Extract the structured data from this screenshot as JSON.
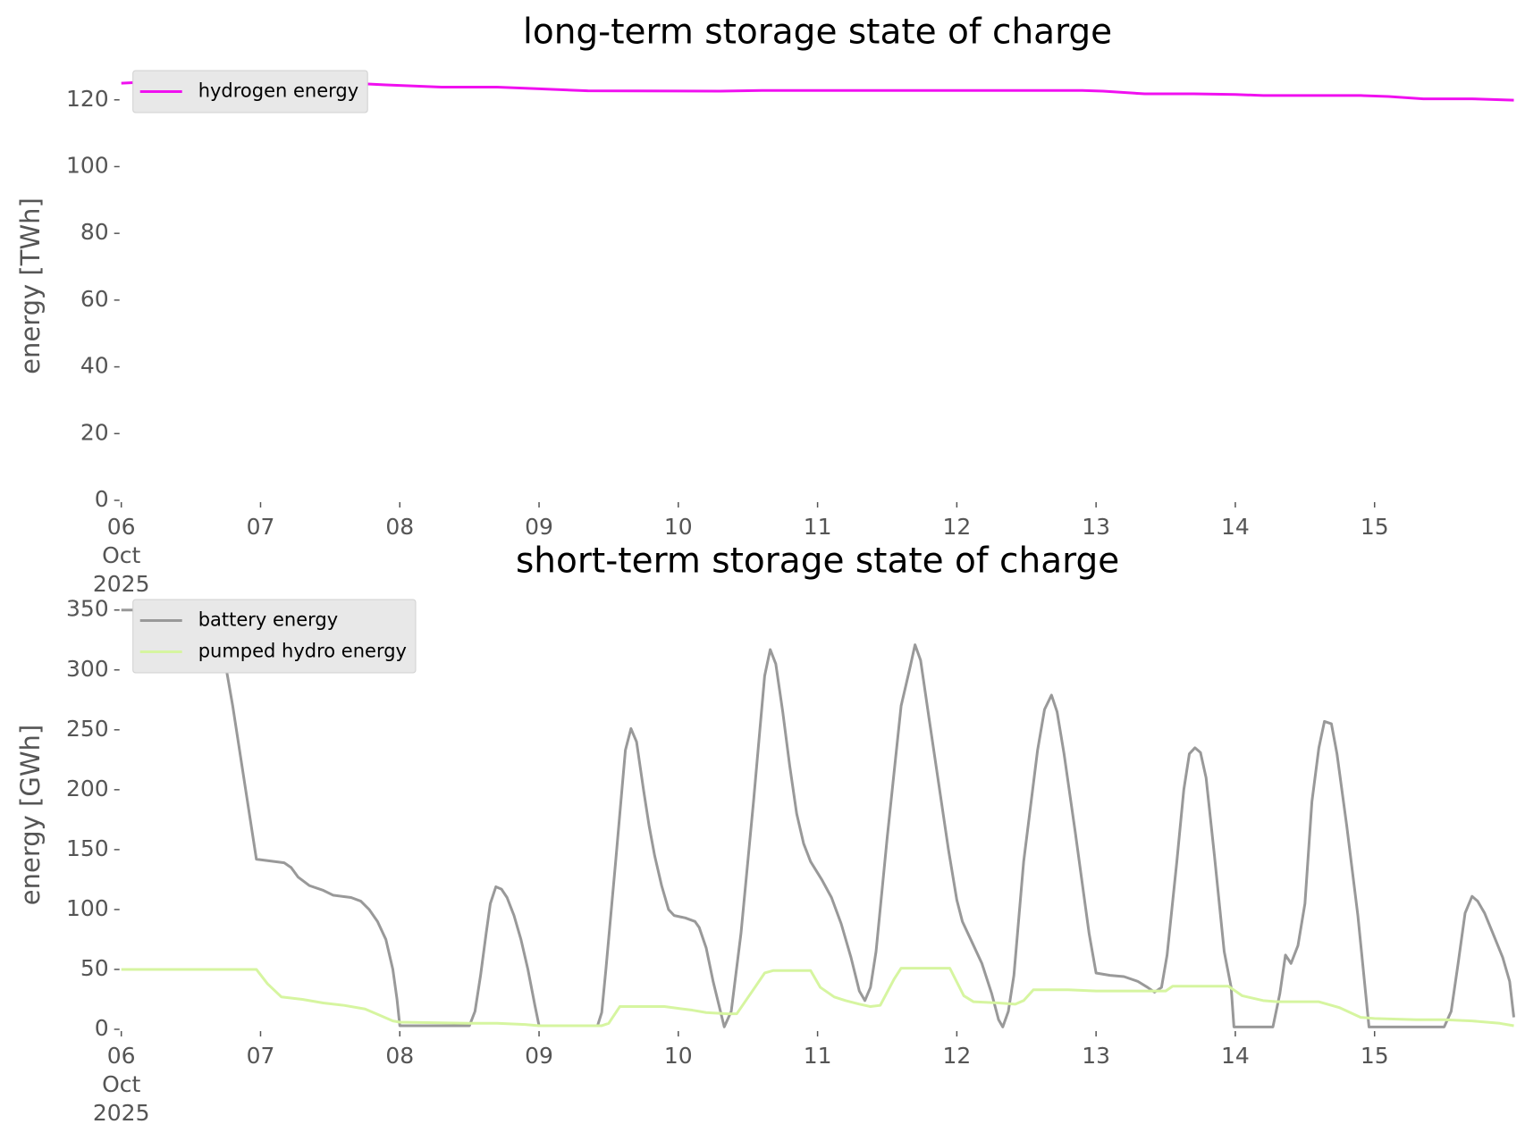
{
  "chart_data": [
    {
      "type": "line",
      "title": "long-term storage state of charge",
      "ylabel": "energy [TWh]",
      "legend": "upper left",
      "xlim": [
        6,
        16
      ],
      "ylim": [
        0,
        128.5
      ],
      "xticks": [
        {
          "value": 6,
          "label": "06\nOct\n2025"
        },
        {
          "value": 7,
          "label": "07"
        },
        {
          "value": 8,
          "label": "08"
        },
        {
          "value": 9,
          "label": "09"
        },
        10,
        11,
        12,
        13,
        14,
        15
      ],
      "yticks": [
        0,
        20,
        40,
        60,
        80,
        100,
        120
      ],
      "series": [
        {
          "name": "hydrogen energy",
          "color": "#f010f0",
          "x": [
            6.0,
            6.15,
            7.5,
            7.9,
            8.3,
            8.7,
            9.0,
            9.35,
            10.3,
            10.6,
            12.9,
            13.05,
            13.35,
            13.7,
            14.0,
            14.2,
            14.9,
            15.1,
            15.35,
            15.7,
            16.0
          ],
          "values": [
            125.0,
            125.3,
            125.3,
            124.5,
            123.8,
            123.8,
            123.3,
            122.7,
            122.6,
            122.8,
            122.8,
            122.6,
            121.8,
            121.8,
            121.6,
            121.3,
            121.3,
            121.0,
            120.3,
            120.3,
            119.9
          ]
        }
      ]
    },
    {
      "type": "line",
      "title": "short-term storage state of charge",
      "ylabel": "energy [GWh]",
      "legend": "upper left",
      "xlim": [
        6,
        16
      ],
      "ylim": [
        0,
        358
      ],
      "xticks": [
        {
          "value": 6,
          "label": "06\nOct\n2025"
        },
        {
          "value": 7,
          "label": "07"
        },
        {
          "value": 8,
          "label": "08"
        },
        {
          "value": 9,
          "label": "09"
        },
        10,
        11,
        12,
        13,
        14,
        15
      ],
      "yticks": [
        0,
        50,
        100,
        150,
        200,
        250,
        300,
        350
      ],
      "series": [
        {
          "name": "battery energy",
          "color": "#999999",
          "x": [
            6.0,
            6.25,
            6.3,
            6.6,
            6.68,
            6.8,
            6.97,
            7.17,
            7.22,
            7.27,
            7.35,
            7.45,
            7.52,
            7.65,
            7.72,
            7.78,
            7.84,
            7.9,
            7.95,
            7.98,
            8.0,
            8.5,
            8.54,
            8.58,
            8.62,
            8.65,
            8.69,
            8.73,
            8.77,
            8.82,
            8.87,
            8.92,
            8.97,
            9.0,
            9.42,
            9.45,
            9.48,
            9.55,
            9.62,
            9.66,
            9.7,
            9.75,
            9.79,
            9.83,
            9.88,
            9.93,
            9.97,
            10.05,
            10.12,
            10.15,
            10.2,
            10.25,
            10.33,
            10.38,
            10.45,
            10.54,
            10.62,
            10.66,
            10.7,
            10.75,
            10.8,
            10.85,
            10.9,
            10.95,
            11.03,
            11.1,
            11.17,
            11.24,
            11.3,
            11.34,
            11.38,
            11.42,
            11.5,
            11.6,
            11.66,
            11.7,
            11.74,
            11.8,
            11.87,
            11.94,
            12.0,
            12.04,
            12.1,
            12.18,
            12.25,
            12.3,
            12.33,
            12.37,
            12.41,
            12.48,
            12.58,
            12.63,
            12.68,
            12.72,
            12.77,
            12.85,
            12.95,
            13.0,
            13.1,
            13.2,
            13.3,
            13.37,
            13.42,
            13.47,
            13.51,
            13.58,
            13.63,
            13.67,
            13.71,
            13.75,
            13.79,
            13.85,
            13.92,
            13.97,
            13.99,
            14.27,
            14.32,
            14.36,
            14.4,
            14.45,
            14.5,
            14.55,
            14.6,
            14.64,
            14.69,
            14.73,
            14.8,
            14.88,
            14.96,
            15.5,
            15.55,
            15.6,
            15.65,
            15.7,
            15.74,
            15.79,
            15.85,
            15.92,
            15.97,
            16.0
          ],
          "values": [
            350,
            350,
            347,
            348,
            350,
            270,
            142,
            139,
            135,
            127,
            120,
            116,
            112,
            110,
            107,
            100,
            90,
            75,
            50,
            25,
            3,
            3,
            15,
            45,
            80,
            105,
            119,
            117,
            110,
            95,
            75,
            50,
            20,
            3,
            3,
            14,
            50,
            140,
            233,
            251,
            240,
            200,
            170,
            145,
            120,
            100,
            95,
            93,
            90,
            85,
            68,
            40,
            2,
            15,
            80,
            190,
            295,
            317,
            305,
            265,
            220,
            180,
            155,
            140,
            125,
            110,
            88,
            60,
            32,
            24,
            35,
            65,
            160,
            270,
            300,
            321,
            308,
            260,
            205,
            150,
            108,
            90,
            75,
            55,
            30,
            8,
            2,
            15,
            45,
            140,
            233,
            267,
            279,
            265,
            230,
            165,
            80,
            47,
            45,
            44,
            40,
            35,
            31,
            35,
            62,
            140,
            200,
            230,
            235,
            231,
            210,
            145,
            65,
            35,
            2,
            2,
            30,
            62,
            55,
            70,
            105,
            190,
            235,
            257,
            255,
            230,
            170,
            95,
            2,
            2,
            15,
            55,
            97,
            111,
            107,
            97,
            80,
            60,
            40,
            10
          ]
        },
        {
          "name": "pumped hydro energy",
          "color": "#d6f5a0",
          "x": [
            6.0,
            6.97,
            7.05,
            7.15,
            7.3,
            7.45,
            7.6,
            7.75,
            7.85,
            7.95,
            8.0,
            8.5,
            8.7,
            8.9,
            9.0,
            9.45,
            9.5,
            9.58,
            9.9,
            10.1,
            10.2,
            10.35,
            10.42,
            10.55,
            10.62,
            10.68,
            10.95,
            11.02,
            11.12,
            11.2,
            11.3,
            11.38,
            11.45,
            11.55,
            11.6,
            11.95,
            12.05,
            12.12,
            12.3,
            12.42,
            12.48,
            12.55,
            12.8,
            13.0,
            13.5,
            13.55,
            13.9,
            13.95,
            14.05,
            14.2,
            14.3,
            14.6,
            14.75,
            14.9,
            15.0,
            15.3,
            15.5,
            15.7,
            15.9,
            16.0
          ],
          "values": [
            50,
            50,
            38,
            27,
            25,
            22,
            20,
            17,
            12,
            7,
            6,
            5,
            5,
            4,
            3,
            3,
            5,
            19,
            19,
            16,
            14,
            13,
            13,
            35,
            47,
            49,
            49,
            35,
            27,
            24,
            21,
            19,
            20,
            42,
            51,
            51,
            28,
            23,
            22,
            21,
            24,
            33,
            33,
            32,
            32,
            36,
            36,
            36,
            28,
            24,
            23,
            23,
            18,
            10,
            9,
            8,
            8,
            7,
            5,
            3
          ]
        }
      ]
    }
  ]
}
